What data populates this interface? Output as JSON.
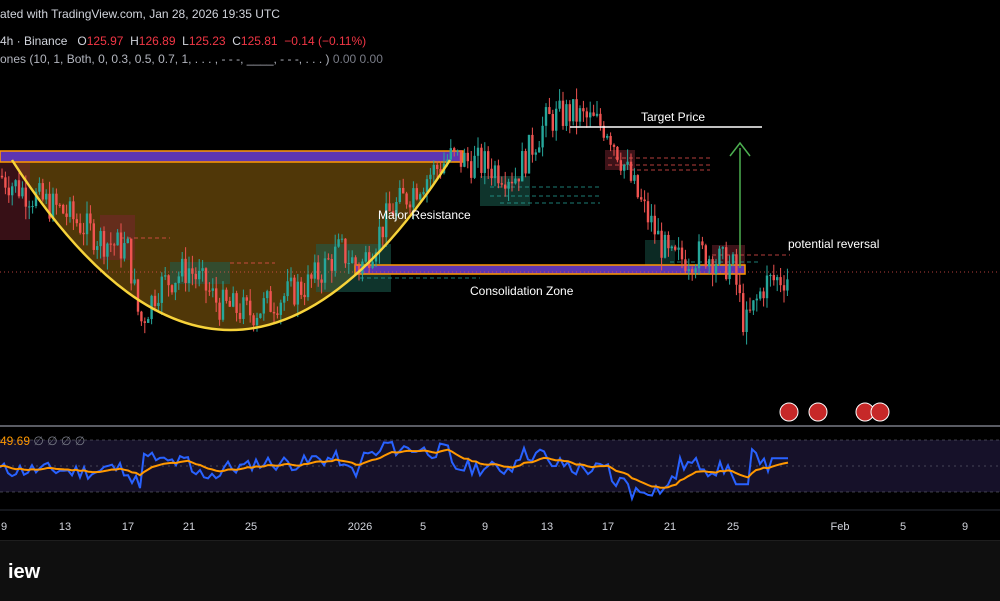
{
  "header": {
    "published": "ated with TradingView.com, Jan 28, 2026 19:35 UTC",
    "symbol": "4h · Binance",
    "open_label": "O",
    "open": "125.97",
    "high_label": "H",
    "high": "126.89",
    "low_label": "L",
    "low": "125.23",
    "close_label": "C",
    "close": "125.81",
    "change": "−0.14 (−0.11%)",
    "indicator": "ones (10, 1, Both, 0, 0.3, 0.5, 0.7, 1, . . . , - - -, ____, - - -, . . . )",
    "indicator_values": "0.00  0.00"
  },
  "rsi": {
    "value": "49.69",
    "extra": "∅  ∅  ∅  ∅"
  },
  "footer": {
    "text": "iew"
  },
  "colors": {
    "background": "#000000",
    "up": "#26a69a",
    "down": "#ef5350",
    "cup_line": "#f7d33a",
    "zone_fill": "#5e35b1",
    "zone_border": "#ff9800",
    "rsi_line": "#2962ff",
    "rsi_ma": "#ff9800",
    "target_arrow": "#4caf50"
  },
  "chart_data": {
    "type": "candlestick",
    "x_ticks": [
      "9",
      "13",
      "17",
      "21",
      "25",
      "2026",
      "5",
      "9",
      "13",
      "17",
      "21",
      "25",
      "Feb",
      "5",
      "9"
    ],
    "annotations": [
      "Target Price",
      "Major Resistance",
      "potential reversal",
      "Consolidation Zone"
    ],
    "close_path": [
      [
        "9",
        128.5
      ],
      [
        "11",
        128.0
      ],
      [
        "13",
        127.5
      ],
      [
        "15",
        126.8
      ],
      [
        "17",
        126.5
      ],
      [
        "18",
        124.5
      ],
      [
        "19",
        125.5
      ],
      [
        "21",
        126.0
      ],
      [
        "23",
        125.0
      ],
      [
        "25",
        124.8
      ],
      [
        "27",
        125.2
      ],
      [
        "29",
        125.6
      ],
      [
        "31",
        126.5
      ],
      [
        "2026",
        126.0
      ],
      [
        "3",
        127.5
      ],
      [
        "5",
        128.4
      ],
      [
        "7",
        129.0
      ],
      [
        "9",
        128.8
      ],
      [
        "11",
        128.5
      ],
      [
        "13",
        130.0
      ],
      [
        "15",
        130.2
      ],
      [
        "17",
        129.8
      ],
      [
        "19",
        127.8
      ],
      [
        "21",
        126.2
      ],
      [
        "23",
        126.4
      ],
      [
        "25",
        126.0
      ],
      [
        "26",
        124.4
      ],
      [
        "27",
        125.6
      ],
      [
        "28",
        125.81
      ]
    ],
    "rsi": {
      "last": 49.69,
      "ma": 49.0
    },
    "grid": false,
    "legend": "top-left"
  }
}
